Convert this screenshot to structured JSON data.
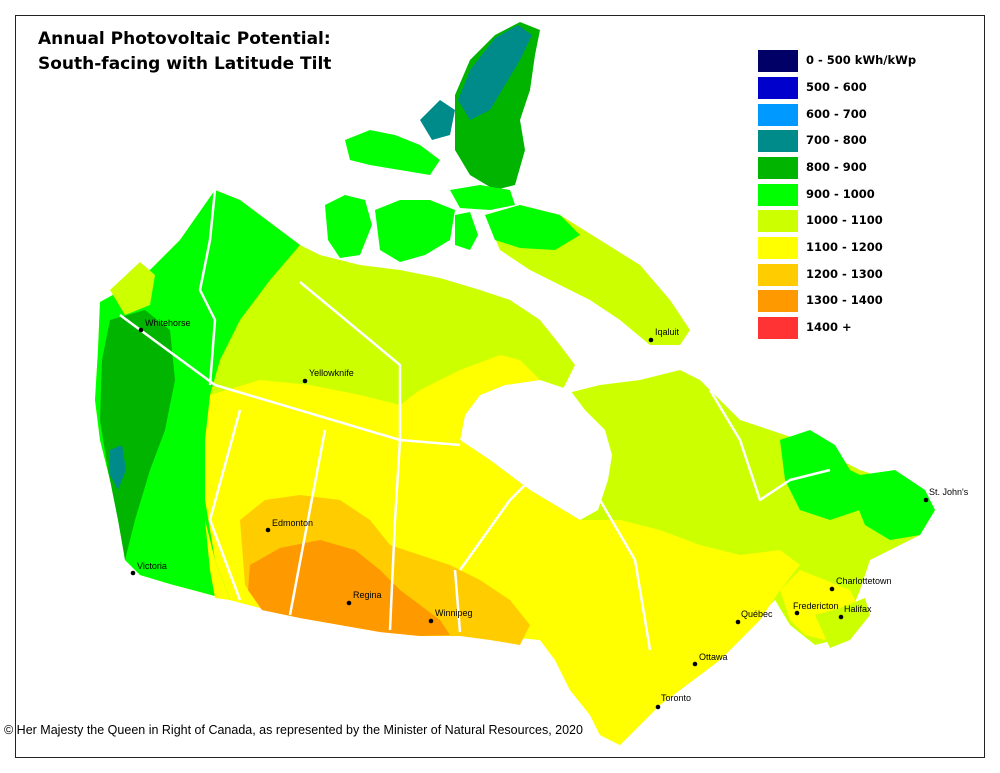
{
  "title": {
    "line1": "Annual Photovoltaic Potential:",
    "line2": "South-facing with Latitude Tilt"
  },
  "legend": [
    {
      "label": "0 - 500 kWh/kWp",
      "color": "#000066"
    },
    {
      "label": "500 - 600",
      "color": "#0000cc"
    },
    {
      "label": "600 - 700",
      "color": "#0099ff"
    },
    {
      "label": "700 - 800",
      "color": "#008b8b"
    },
    {
      "label": "800 - 900",
      "color": "#00b400"
    },
    {
      "label": "900 - 1000",
      "color": "#00ff00"
    },
    {
      "label": "1000 - 1100",
      "color": "#ccff00"
    },
    {
      "label": "1100 - 1200",
      "color": "#ffff00"
    },
    {
      "label": "1200 - 1300",
      "color": "#ffcc00"
    },
    {
      "label": "1300 - 1400",
      "color": "#ff9900"
    },
    {
      "label": "1400 +",
      "color": "#ff3333"
    }
  ],
  "cities": [
    {
      "name": "Whitehorse"
    },
    {
      "name": "Yellowknife"
    },
    {
      "name": "Iqaluit"
    },
    {
      "name": "Edmonton"
    },
    {
      "name": "Victoria"
    },
    {
      "name": "Regina"
    },
    {
      "name": "Winnipeg"
    },
    {
      "name": "St. John's"
    },
    {
      "name": "Charlottetown"
    },
    {
      "name": "Fredericton"
    },
    {
      "name": "Halifax"
    },
    {
      "name": "Québec"
    },
    {
      "name": "Ottawa"
    },
    {
      "name": "Toronto"
    }
  ],
  "credit": "© Her Majesty the Queen in Right of Canada, as represented by the Minister of Natural Resources, 2020"
}
